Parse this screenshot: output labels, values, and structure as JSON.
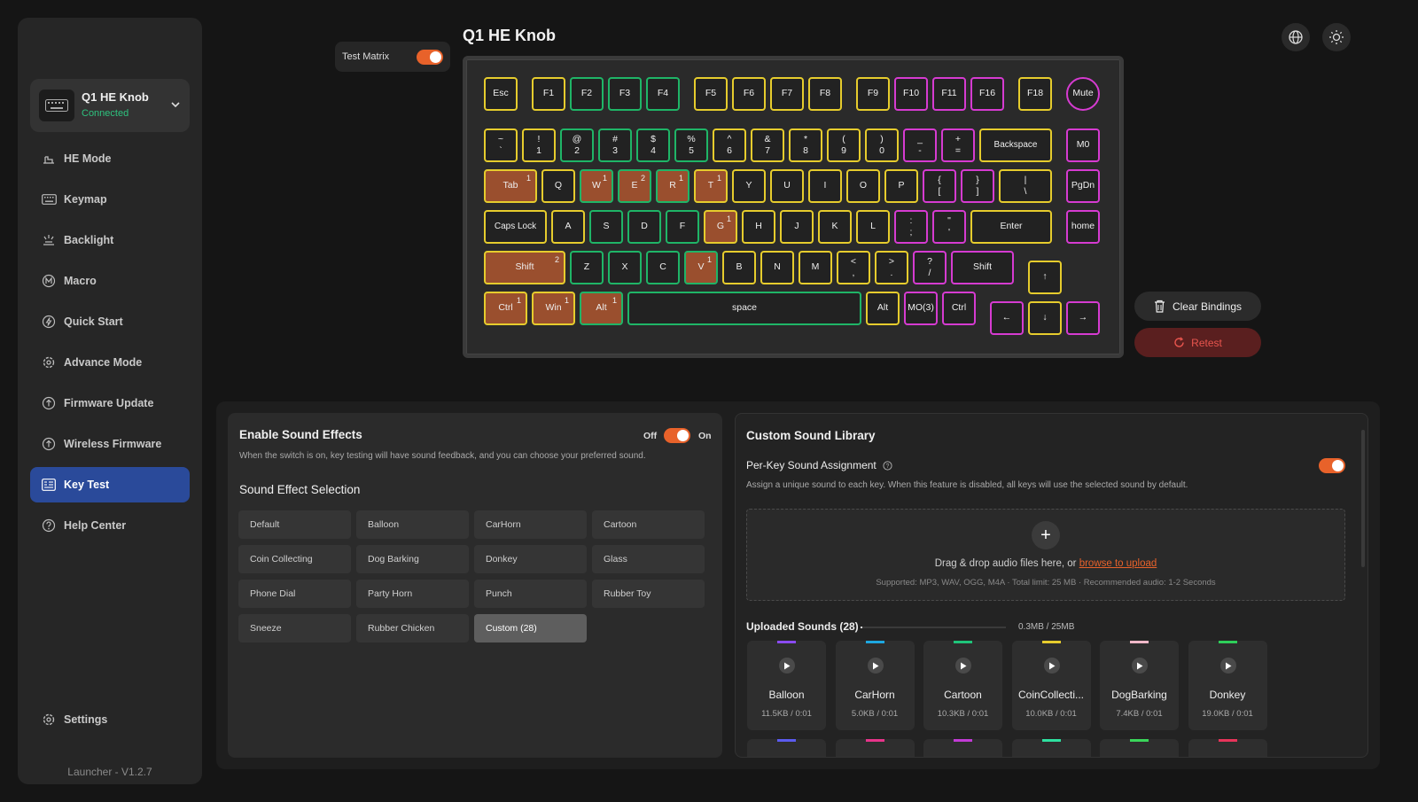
{
  "device": {
    "name": "Q1 HE Knob",
    "status": "Connected"
  },
  "sidebar": {
    "items": [
      {
        "label": "HE Mode",
        "icon": "he-mode-icon"
      },
      {
        "label": "Keymap",
        "icon": "keyboard-icon"
      },
      {
        "label": "Backlight",
        "icon": "backlight-icon"
      },
      {
        "label": "Macro",
        "icon": "macro-icon"
      },
      {
        "label": "Quick Start",
        "icon": "lightning-icon"
      },
      {
        "label": "Advance Mode",
        "icon": "gear-icon"
      },
      {
        "label": "Firmware Update",
        "icon": "upload-icon"
      },
      {
        "label": "Wireless Firmware",
        "icon": "upload-icon"
      },
      {
        "label": "Key Test",
        "icon": "key-test-icon"
      },
      {
        "label": "Help Center",
        "icon": "help-icon"
      }
    ],
    "settings": "Settings",
    "version": "Launcher - V1.2.7"
  },
  "header": {
    "title": "Q1 HE Knob",
    "test_matrix": "Test Matrix"
  },
  "actions": {
    "clear": "Clear Bindings",
    "retest": "Retest"
  },
  "sound": {
    "title": "Enable Sound Effects",
    "off": "Off",
    "on": "On",
    "desc": "When the switch is on, key testing will have sound feedback, and you can choose your preferred sound.",
    "selection_title": "Sound Effect Selection",
    "options": [
      "Default",
      "Balloon",
      "CarHorn",
      "Cartoon",
      "Coin Collecting",
      "Dog Barking",
      "Donkey",
      "Glass",
      "Phone Dial",
      "Party Horn",
      "Punch",
      "Rubber Toy",
      "Sneeze",
      "Rubber Chicken",
      "Custom (28)"
    ],
    "selected": "Custom (28)"
  },
  "library": {
    "title": "Custom Sound Library",
    "per_key": "Per-Key Sound Assignment",
    "per_key_desc": "Assign a unique sound to each key. When this feature is disabled, all keys will use the selected sound by default.",
    "drop_text": "Drag & drop audio files here, or ",
    "browse": "browse to upload",
    "supported": "Supported: MP3, WAV, OGG, M4A · Total limit: 25 MB · Recommended audio: 1-2 Seconds",
    "uploaded_label": "Uploaded Sounds (28)",
    "usage": "0.3MB / 25MB",
    "usage_fraction": 0.012,
    "sounds": [
      {
        "name": "Balloon",
        "meta": "11.5KB / 0:01",
        "color": "#8a4bf0"
      },
      {
        "name": "CarHorn",
        "meta": "5.0KB / 0:01",
        "color": "#1ea7e0"
      },
      {
        "name": "Cartoon",
        "meta": "10.3KB / 0:01",
        "color": "#1fc47a"
      },
      {
        "name": "CoinCollecti...",
        "meta": "10.0KB / 0:01",
        "color": "#e6cc2d"
      },
      {
        "name": "DogBarking",
        "meta": "7.4KB / 0:01",
        "color": "#f0b8c8"
      },
      {
        "name": "Donkey",
        "meta": "19.0KB / 0:01",
        "color": "#2ecf5a"
      }
    ],
    "row2_colors": [
      "#5b5bf0",
      "#e8348a",
      "#c23bd6",
      "#2ee0a0",
      "#3ad65a",
      "#e8345a"
    ]
  },
  "keys": [
    [
      "Esc",
      "",
      "y",
      ""
    ],
    [
      "F1",
      "",
      "y",
      ""
    ],
    [
      "F2",
      "",
      "g",
      ""
    ],
    [
      "F3",
      "",
      "g",
      ""
    ],
    [
      "F4",
      "",
      "g",
      ""
    ],
    [
      "F5",
      "",
      "y",
      ""
    ],
    [
      "F6",
      "",
      "y",
      ""
    ],
    [
      "F7",
      "",
      "y",
      ""
    ],
    [
      "F8",
      "",
      "y",
      ""
    ],
    [
      "F9",
      "",
      "y",
      ""
    ],
    [
      "F10",
      "",
      "m",
      ""
    ],
    [
      "F11",
      "",
      "m",
      ""
    ],
    [
      "F16",
      "",
      "m",
      ""
    ],
    [
      "F18",
      "",
      "y",
      ""
    ],
    [
      "Mute",
      "",
      "m",
      ""
    ],
    [
      "~",
      "`",
      "y",
      ""
    ],
    [
      "!",
      "1",
      "y",
      ""
    ],
    [
      "@",
      "2",
      "g",
      ""
    ],
    [
      "#",
      "3",
      "g",
      ""
    ],
    [
      "$",
      "4",
      "g",
      ""
    ],
    [
      "%",
      "5",
      "g",
      ""
    ],
    [
      "^",
      "6",
      "y",
      ""
    ],
    [
      "&",
      "7",
      "y",
      ""
    ],
    [
      "*",
      "8",
      "y",
      ""
    ],
    [
      "(",
      "9",
      "y",
      ""
    ],
    [
      ")",
      "0",
      "y",
      ""
    ],
    [
      "_",
      "-",
      "m",
      ""
    ],
    [
      "+",
      "=",
      "m",
      ""
    ],
    [
      "Backspace",
      "",
      "y",
      ""
    ],
    [
      "M0",
      "",
      "m",
      ""
    ],
    [
      "Tab",
      "",
      "y",
      "1"
    ],
    [
      "Q",
      "",
      "y",
      ""
    ],
    [
      "W",
      "",
      "g",
      "1"
    ],
    [
      "E",
      "",
      "g",
      "2"
    ],
    [
      "R",
      "",
      "g",
      "1"
    ],
    [
      "T",
      "",
      "y",
      "1"
    ],
    [
      "Y",
      "",
      "y",
      ""
    ],
    [
      "U",
      "",
      "y",
      ""
    ],
    [
      "I",
      "",
      "y",
      ""
    ],
    [
      "O",
      "",
      "y",
      ""
    ],
    [
      "P",
      "",
      "y",
      ""
    ],
    [
      "{",
      "[",
      "m",
      ""
    ],
    [
      "}",
      "]",
      "m",
      ""
    ],
    [
      "|",
      "\\",
      "y",
      ""
    ],
    [
      "PgDn",
      "",
      "m",
      ""
    ],
    [
      "Caps Lock",
      "",
      "y",
      ""
    ],
    [
      "A",
      "",
      "y",
      ""
    ],
    [
      "S",
      "",
      "g",
      ""
    ],
    [
      "D",
      "",
      "g",
      ""
    ],
    [
      "F",
      "",
      "g",
      ""
    ],
    [
      "G",
      "",
      "y",
      "1"
    ],
    [
      "H",
      "",
      "y",
      ""
    ],
    [
      "J",
      "",
      "y",
      ""
    ],
    [
      "K",
      "",
      "y",
      ""
    ],
    [
      "L",
      "",
      "y",
      ""
    ],
    [
      ":",
      ";",
      "m",
      ""
    ],
    [
      "\"",
      "'",
      "m",
      ""
    ],
    [
      "Enter",
      "",
      "y",
      ""
    ],
    [
      "home",
      "",
      "m",
      ""
    ],
    [
      "Shift",
      "",
      "y",
      "2"
    ],
    [
      "Z",
      "",
      "g",
      ""
    ],
    [
      "X",
      "",
      "g",
      ""
    ],
    [
      "C",
      "",
      "g",
      ""
    ],
    [
      "V",
      "",
      "g",
      "1"
    ],
    [
      "B",
      "",
      "y",
      ""
    ],
    [
      "N",
      "",
      "y",
      ""
    ],
    [
      "M",
      "",
      "y",
      ""
    ],
    [
      "<",
      ",",
      "y",
      ""
    ],
    [
      ">",
      ".",
      "y",
      ""
    ],
    [
      "?",
      "/",
      "m",
      ""
    ],
    [
      "Shift",
      "",
      "m",
      ""
    ],
    [
      "↑",
      "",
      "y",
      ""
    ],
    [
      "Ctrl",
      "",
      "y",
      "1"
    ],
    [
      "Win",
      "",
      "y",
      "1"
    ],
    [
      "Alt",
      "",
      "g",
      "1"
    ],
    [
      "space",
      "",
      "g",
      ""
    ],
    [
      "Alt",
      "",
      "y",
      ""
    ],
    [
      "MO(3)",
      "",
      "m",
      ""
    ],
    [
      "Ctrl",
      "",
      "m",
      ""
    ],
    [
      "←",
      "",
      "m",
      ""
    ],
    [
      "↓",
      "",
      "y",
      ""
    ],
    [
      "→",
      "",
      "m",
      ""
    ]
  ]
}
